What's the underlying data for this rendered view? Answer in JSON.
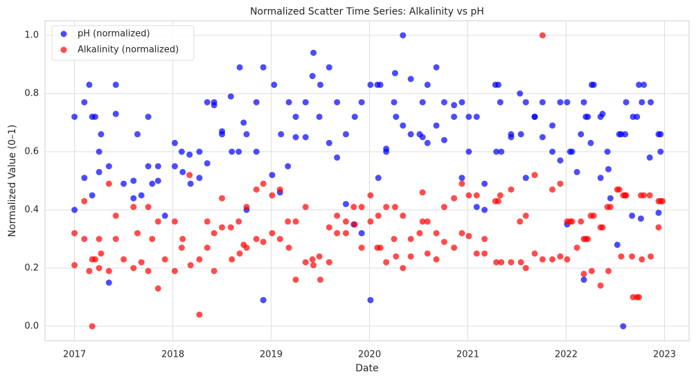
{
  "chart_data": {
    "type": "scatter",
    "title": "Normalized Scatter Time Series: Alkalinity vs pH",
    "x_label": "Date",
    "y_label": "Normalized Value (0–1)",
    "xlim": [
      2016.7,
      2023.25
    ],
    "ylim": [
      -0.05,
      1.05
    ],
    "xticks": [
      2017,
      2018,
      2019,
      2020,
      2021,
      2022,
      2023
    ],
    "yticks": [
      {
        "value": 0,
        "label": "0.0"
      },
      0.2,
      0.4,
      0.6,
      0.8,
      {
        "value": 1,
        "label": "1.0"
      }
    ],
    "grid": true,
    "legend": "upper left",
    "opacity": 0.7,
    "series": [
      {
        "name": "pH (normalized)",
        "color": "#0000ff",
        "x": [
          2017.0,
          2017.0,
          2017.1,
          2017.1,
          2017.15,
          2017.18,
          2017.18,
          2017.21,
          2017.25,
          2017.25,
          2017.27,
          2017.35,
          2017.35,
          2017.42,
          2017.42,
          2017.5,
          2017.6,
          2017.6,
          2017.64,
          2017.68,
          2017.75,
          2017.75,
          2017.79,
          2017.85,
          2017.85,
          2017.92,
          2018.02,
          2018.02,
          2018.09,
          2018.1,
          2018.17,
          2018.18,
          2018.27,
          2018.27,
          2018.35,
          2018.35,
          2018.42,
          2018.42,
          2018.5,
          2018.5,
          2018.59,
          2018.6,
          2018.67,
          2018.68,
          2018.72,
          2018.75,
          2018.75,
          2018.85,
          2018.85,
          2018.92,
          2018.92,
          2019.01,
          2019.03,
          2019.09,
          2019.1,
          2019.17,
          2019.18,
          2019.25,
          2019.25,
          2019.35,
          2019.35,
          2019.42,
          2019.43,
          2019.49,
          2019.5,
          2019.59,
          2019.59,
          2019.67,
          2019.67,
          2019.76,
          2019.76,
          2019.84,
          2019.85,
          2019.92,
          2019.92,
          2020.01,
          2020.01,
          2020.08,
          2020.09,
          2020.11,
          2020.17,
          2020.17,
          2020.25,
          2020.26,
          2020.27,
          2020.34,
          2020.34,
          2020.42,
          2020.42,
          2020.51,
          2020.54,
          2020.54,
          2020.59,
          2020.59,
          2020.68,
          2020.68,
          2020.76,
          2020.76,
          2020.86,
          2020.86,
          2020.94,
          2020.94,
          2021.01,
          2021.01,
          2021.09,
          2021.09,
          2021.17,
          2021.17,
          2021.28,
          2021.29,
          2021.31,
          2021.33,
          2021.34,
          2021.44,
          2021.44,
          2021.53,
          2021.54,
          2021.59,
          2021.59,
          2021.68,
          2021.68,
          2021.76,
          2021.76,
          2021.86,
          2021.86,
          2021.94,
          2021.94,
          2022.01,
          2022.01,
          2022.04,
          2022.06,
          2022.11,
          2022.15,
          2022.18,
          2022.18,
          2022.2,
          2022.22,
          2022.25,
          2022.26,
          2022.28,
          2022.35,
          2022.35,
          2022.37,
          2022.42,
          2022.43,
          2022.45,
          2022.52,
          2022.54,
          2022.56,
          2022.58,
          2022.6,
          2022.61,
          2022.67,
          2022.68,
          2022.72,
          2022.74,
          2022.76,
          2022.77,
          2022.79,
          2022.85,
          2022.86,
          2022.94,
          2022.94,
          2022.96,
          2022.96
        ],
        "values": [
          0.4,
          0.72,
          0.77,
          0.51,
          0.83,
          0.72,
          0.45,
          0.72,
          0.6,
          0.53,
          0.66,
          0.15,
          0.55,
          0.83,
          0.73,
          0.49,
          0.5,
          0.44,
          0.66,
          0.45,
          0.72,
          0.55,
          0.49,
          0.55,
          0.5,
          0.38,
          0.63,
          0.55,
          0.6,
          0.53,
          0.59,
          0.49,
          0.6,
          0.51,
          0.77,
          0.56,
          0.77,
          0.76,
          0.67,
          0.66,
          0.79,
          0.6,
          0.6,
          0.89,
          0.7,
          0.66,
          0.4,
          0.77,
          0.6,
          0.89,
          0.09,
          0.52,
          0.83,
          0.46,
          0.66,
          0.55,
          0.77,
          0.72,
          0.65,
          0.77,
          0.65,
          0.86,
          0.94,
          0.72,
          0.83,
          0.89,
          0.63,
          0.77,
          0.58,
          0.66,
          0.42,
          0.35,
          0.72,
          0.32,
          0.77,
          0.83,
          0.09,
          0.83,
          0.51,
          0.83,
          0.6,
          0.61,
          0.77,
          0.87,
          0.72,
          1.0,
          0.69,
          0.85,
          0.66,
          0.66,
          0.77,
          0.65,
          0.63,
          0.83,
          0.89,
          0.69,
          0.77,
          0.64,
          0.76,
          0.72,
          0.77,
          0.51,
          0.72,
          0.6,
          0.72,
          0.41,
          0.4,
          0.49,
          0.83,
          0.6,
          0.83,
          0.77,
          0.6,
          0.66,
          0.65,
          0.8,
          0.66,
          0.77,
          0.51,
          0.72,
          0.72,
          0.65,
          0.77,
          0.69,
          0.6,
          0.77,
          0.57,
          0.77,
          0.35,
          0.6,
          0.6,
          0.53,
          0.66,
          0.16,
          0.77,
          0.72,
          0.72,
          0.63,
          0.83,
          0.83,
          0.72,
          0.51,
          0.73,
          0.6,
          0.54,
          0.44,
          0.28,
          0.66,
          0.66,
          0.0,
          0.66,
          0.77,
          0.38,
          0.72,
          0.72,
          0.83,
          0.37,
          0.77,
          0.83,
          0.58,
          0.77,
          0.39,
          0.66,
          0.66,
          0.6
        ]
      },
      {
        "name": "Alkalinity (normalized)",
        "color": "#ff0000",
        "x": [
          2017.0,
          2017.0,
          2017.1,
          2017.1,
          2017.15,
          2017.18,
          2017.18,
          2017.21,
          2017.25,
          2017.25,
          2017.27,
          2017.35,
          2017.35,
          2017.42,
          2017.42,
          2017.5,
          2017.6,
          2017.6,
          2017.64,
          2017.68,
          2017.75,
          2017.75,
          2017.79,
          2017.85,
          2017.85,
          2017.92,
          2018.02,
          2018.02,
          2018.09,
          2018.1,
          2018.17,
          2018.18,
          2018.27,
          2018.27,
          2018.35,
          2018.35,
          2018.42,
          2018.42,
          2018.5,
          2018.5,
          2018.59,
          2018.6,
          2018.67,
          2018.68,
          2018.72,
          2018.75,
          2018.75,
          2018.85,
          2018.85,
          2018.92,
          2018.92,
          2019.01,
          2019.01,
          2019.09,
          2019.09,
          2019.17,
          2019.18,
          2019.25,
          2019.25,
          2019.35,
          2019.35,
          2019.42,
          2019.43,
          2019.49,
          2019.5,
          2019.59,
          2019.59,
          2019.67,
          2019.67,
          2019.76,
          2019.76,
          2019.84,
          2019.85,
          2019.92,
          2019.92,
          2020.01,
          2020.01,
          2020.08,
          2020.09,
          2020.11,
          2020.17,
          2020.17,
          2020.25,
          2020.26,
          2020.27,
          2020.34,
          2020.34,
          2020.42,
          2020.42,
          2020.51,
          2020.54,
          2020.54,
          2020.59,
          2020.59,
          2020.68,
          2020.68,
          2020.76,
          2020.76,
          2020.86,
          2020.86,
          2020.94,
          2020.94,
          2021.01,
          2021.01,
          2021.09,
          2021.09,
          2021.17,
          2021.17,
          2021.28,
          2021.29,
          2021.31,
          2021.33,
          2021.34,
          2021.44,
          2021.44,
          2021.53,
          2021.54,
          2021.59,
          2021.59,
          2021.68,
          2021.68,
          2021.76,
          2021.76,
          2021.86,
          2021.86,
          2021.94,
          2021.94,
          2022.01,
          2022.01,
          2022.04,
          2022.06,
          2022.11,
          2022.15,
          2022.18,
          2022.18,
          2022.2,
          2022.22,
          2022.25,
          2022.26,
          2022.28,
          2022.35,
          2022.35,
          2022.37,
          2022.42,
          2022.43,
          2022.45,
          2022.52,
          2022.54,
          2022.56,
          2022.58,
          2022.6,
          2022.61,
          2022.67,
          2022.68,
          2022.72,
          2022.74,
          2022.76,
          2022.77,
          2022.79,
          2022.85,
          2022.86,
          2022.94,
          2022.94,
          2022.96,
          2022.98
        ],
        "values": [
          0.21,
          0.32,
          0.43,
          0.3,
          0.19,
          0.23,
          0.0,
          0.23,
          0.3,
          0.2,
          0.25,
          0.49,
          0.19,
          0.38,
          0.3,
          0.23,
          0.41,
          0.2,
          0.32,
          0.22,
          0.41,
          0.19,
          0.3,
          0.36,
          0.13,
          0.23,
          0.36,
          0.19,
          0.27,
          0.3,
          0.52,
          0.21,
          0.23,
          0.04,
          0.36,
          0.27,
          0.32,
          0.19,
          0.44,
          0.34,
          0.34,
          0.23,
          0.36,
          0.25,
          0.28,
          0.41,
          0.27,
          0.47,
          0.3,
          0.49,
          0.29,
          0.45,
          0.32,
          0.47,
          0.3,
          0.36,
          0.27,
          0.36,
          0.16,
          0.41,
          0.22,
          0.23,
          0.21,
          0.24,
          0.16,
          0.34,
          0.22,
          0.32,
          0.38,
          0.36,
          0.32,
          0.41,
          0.35,
          0.41,
          0.27,
          0.45,
          0.36,
          0.27,
          0.38,
          0.27,
          0.41,
          0.22,
          0.3,
          0.41,
          0.24,
          0.38,
          0.2,
          0.3,
          0.24,
          0.32,
          0.36,
          0.46,
          0.25,
          0.36,
          0.32,
          0.23,
          0.41,
          0.29,
          0.44,
          0.27,
          0.49,
          0.32,
          0.45,
          0.31,
          0.45,
          0.25,
          0.3,
          0.25,
          0.43,
          0.22,
          0.43,
          0.45,
          0.22,
          0.47,
          0.22,
          0.36,
          0.22,
          0.38,
          0.2,
          0.52,
          0.25,
          1.0,
          0.23,
          0.47,
          0.23,
          0.49,
          0.24,
          0.36,
          0.23,
          0.36,
          0.36,
          0.27,
          0.36,
          0.3,
          0.18,
          0.3,
          0.3,
          0.38,
          0.19,
          0.38,
          0.34,
          0.14,
          0.34,
          0.41,
          0.19,
          0.41,
          0.47,
          0.47,
          0.24,
          0.45,
          0.45,
          0.45,
          0.24,
          0.1,
          0.1,
          0.1,
          0.45,
          0.23,
          0.45,
          0.45,
          0.24,
          0.43,
          0.34,
          0.43,
          0.43
        ]
      }
    ]
  }
}
